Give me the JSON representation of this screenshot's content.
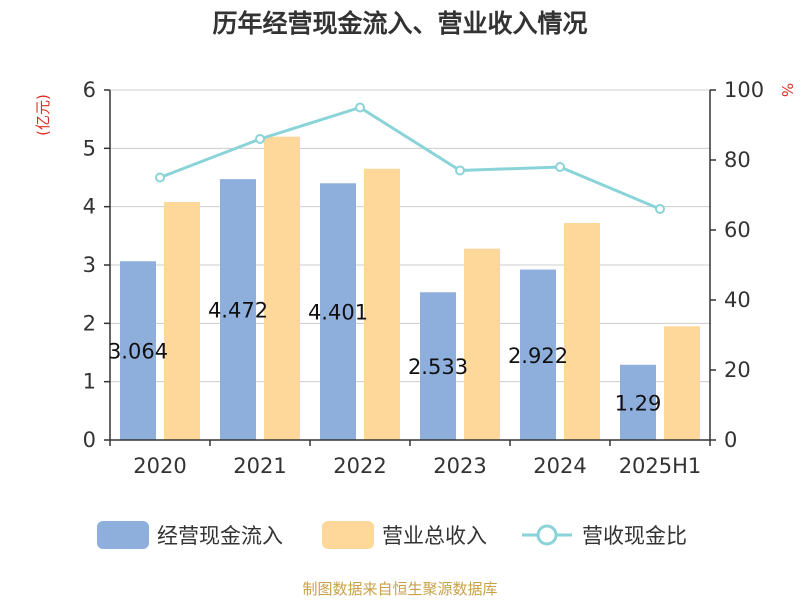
{
  "source_text": "制图数据来自恒生聚源数据库",
  "colors": {
    "bar1": "#8eaedb",
    "bar2": "#fdd89a",
    "line": "#8ad3d8",
    "grid": "#cccccc",
    "axis": "#333333",
    "unit": "#d93025",
    "source": "#c8a14a"
  },
  "chart_data": {
    "type": "bar",
    "title": "历年经营现金流入、营业收入情况",
    "categories": [
      "2020",
      "2021",
      "2022",
      "2023",
      "2024",
      "2025H1"
    ],
    "y_left": {
      "unit_label": "(亿元)",
      "range": [
        0,
        6
      ],
      "ticks": [
        "0",
        "1",
        "2",
        "3",
        "4",
        "5",
        "6"
      ]
    },
    "y_right": {
      "unit_label": "%",
      "range": [
        0,
        100
      ],
      "ticks": [
        "0",
        "20",
        "40",
        "60",
        "80",
        "100"
      ]
    },
    "series": [
      {
        "name": "经营现金流入",
        "type": "bar",
        "axis": "left",
        "values": [
          3.064,
          4.472,
          4.401,
          2.533,
          2.922,
          1.29
        ],
        "labels": [
          "3.064",
          "4.472",
          "4.401",
          "2.533",
          "2.922",
          "1.29"
        ]
      },
      {
        "name": "营业总收入",
        "type": "bar",
        "axis": "left",
        "values": [
          4.08,
          5.2,
          4.65,
          3.28,
          3.72,
          1.95
        ]
      },
      {
        "name": "营收现金比",
        "type": "line",
        "axis": "right",
        "values": [
          75,
          86,
          95,
          77,
          78,
          66
        ]
      }
    ],
    "grid": true,
    "legend_position": "bottom"
  }
}
